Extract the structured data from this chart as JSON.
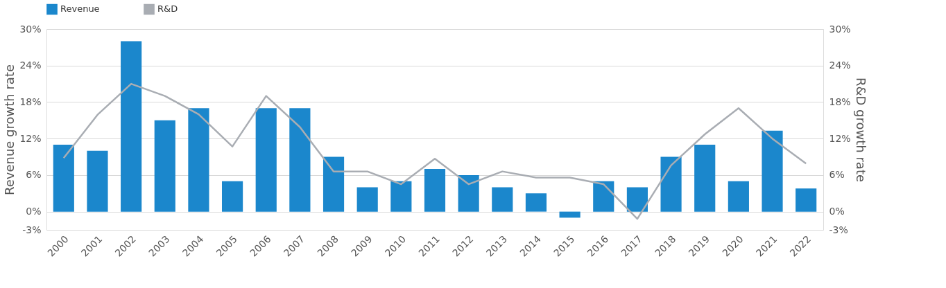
{
  "chart_data": {
    "type": "bar",
    "categories": [
      "2000",
      "2001",
      "2002",
      "2003",
      "2004",
      "2005",
      "2006",
      "2007",
      "2008",
      "2009",
      "2010",
      "2011",
      "2012",
      "2013",
      "2014",
      "2015",
      "2016",
      "2017",
      "2018",
      "2019",
      "2020",
      "2021",
      "2022"
    ],
    "series": [
      {
        "name": "Revenue",
        "color": "#1b87cc",
        "values": [
          11,
          10,
          28,
          15,
          17,
          5,
          17,
          17,
          9,
          4,
          5,
          7,
          6,
          4,
          3,
          -1,
          5,
          4,
          9,
          11,
          5,
          13.3,
          3.8
        ]
      },
      {
        "name": "R&D",
        "type": "line",
        "axis": "y2",
        "color": "#a9adb3",
        "values": [
          8.8,
          15.9,
          21,
          19,
          16,
          10.7,
          19,
          13.9,
          6.6,
          6.6,
          4.5,
          8.7,
          4.5,
          6.6,
          5.6,
          5.6,
          4.5,
          -1.2,
          7.6,
          12.7,
          17,
          12,
          7.9
        ]
      }
    ],
    "ylabel": "Revenue growth rate",
    "y2label": "R&D growth rate",
    "ylim": [
      -3,
      30
    ],
    "yticks": [
      {
        "value": -3,
        "label": "-3%"
      },
      {
        "value": 0,
        "label": "0%"
      },
      {
        "value": 6,
        "label": "6%"
      },
      {
        "value": 12,
        "label": "12%"
      },
      {
        "value": 18,
        "label": "18%"
      },
      {
        "value": 24,
        "label": "24%"
      },
      {
        "value": 30,
        "label": "30%"
      }
    ],
    "y2lim": [
      -3,
      30
    ],
    "y2ticks": [
      {
        "value": -3,
        "label": "-3%"
      },
      {
        "value": 0,
        "label": "0%"
      },
      {
        "value": 6,
        "label": "6%"
      },
      {
        "value": 12,
        "label": "12%"
      },
      {
        "value": 18,
        "label": "18%"
      },
      {
        "value": 24,
        "label": "24%"
      },
      {
        "value": 30,
        "label": "30%"
      }
    ],
    "grid": "y",
    "legend": "top",
    "marker": "none",
    "line_style": "solid"
  }
}
